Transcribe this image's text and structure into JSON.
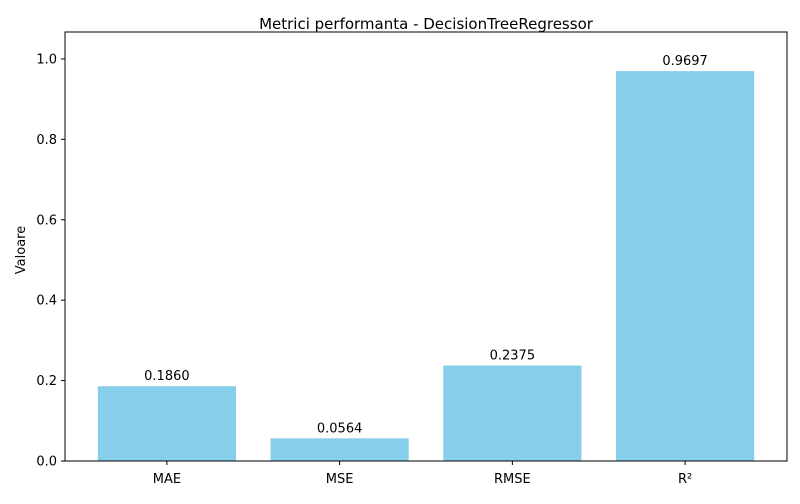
{
  "chart_data": {
    "type": "bar",
    "title": "Metrici performanta - DecisionTreeRegressor",
    "xlabel": "",
    "ylabel": "Valoare",
    "categories": [
      "MAE",
      "MSE",
      "RMSE",
      "R²"
    ],
    "values": [
      0.186,
      0.0564,
      0.2375,
      0.9697
    ],
    "data_labels": [
      "0.1860",
      "0.0564",
      "0.2375",
      "0.9697"
    ],
    "ylim": [
      0,
      1.067
    ],
    "yticks": [
      0.0,
      0.2,
      0.4,
      0.6,
      0.8,
      1.0
    ],
    "ytick_labels": [
      "0.0",
      "0.2",
      "0.4",
      "0.6",
      "0.8",
      "1.0"
    ],
    "grid": false,
    "legend": "none",
    "bar_color": "#87CEEB"
  }
}
